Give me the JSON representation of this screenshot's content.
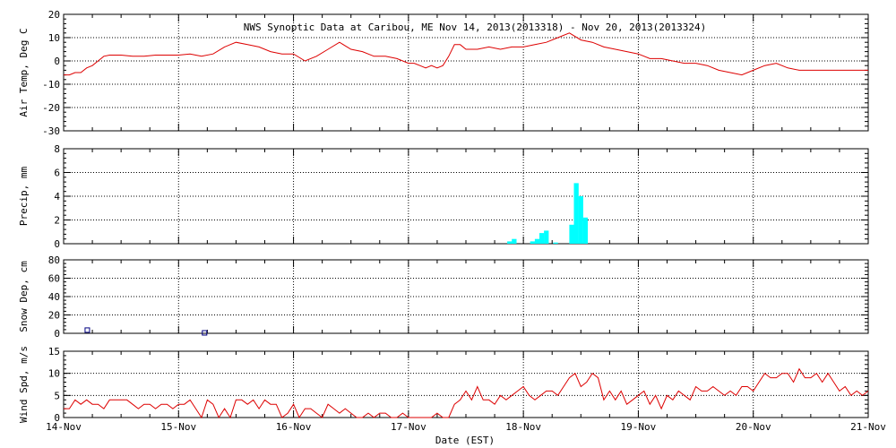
{
  "title": "NWS Synoptic Data at Caribou, ME   Nov 14, 2013(2013318) - Nov 20, 2013(2013324)",
  "colors": {
    "line": "#dd0000",
    "precip": "#00ffff",
    "snow": "#000080",
    "axis": "#000000"
  },
  "chart_data": [
    {
      "type": "line",
      "ylabel": "Air Temp, Deg C",
      "ylim": [
        -30,
        20
      ],
      "yticks": [
        "20",
        "10",
        "0",
        "-10",
        "-20",
        "-30"
      ],
      "grid": true,
      "x_units": "days since Nov 14 00:00",
      "series": [
        {
          "x": [
            0,
            0.05,
            0.1,
            0.15,
            0.2,
            0.25,
            0.3,
            0.35,
            0.4,
            0.45,
            0.5,
            0.6,
            0.7,
            0.8,
            0.9,
            1.0,
            1.1,
            1.2,
            1.3,
            1.4,
            1.5,
            1.6,
            1.7,
            1.8,
            1.9,
            2.0,
            2.1,
            2.2,
            2.3,
            2.4,
            2.5,
            2.6,
            2.7,
            2.8,
            2.9,
            3.0,
            3.05,
            3.1,
            3.15,
            3.2,
            3.25,
            3.3,
            3.35,
            3.4,
            3.45,
            3.5,
            3.6,
            3.7,
            3.8,
            3.9,
            4.0,
            4.1,
            4.2,
            4.3,
            4.4,
            4.5,
            4.6,
            4.7,
            4.8,
            4.9,
            5.0,
            5.1,
            5.2,
            5.3,
            5.4,
            5.5,
            5.6,
            5.7,
            5.8,
            5.9,
            6.0,
            6.1,
            6.2,
            6.3,
            6.4,
            6.5,
            6.6,
            6.7,
            6.8,
            6.9,
            7.0
          ],
          "y": [
            -6,
            -6,
            -5,
            -5,
            -3,
            -2,
            0,
            2,
            2.5,
            2.5,
            2.5,
            2,
            2,
            2.5,
            2.5,
            2.5,
            3,
            2,
            3,
            6,
            8,
            7,
            6,
            4,
            3,
            3,
            0,
            2,
            5,
            8,
            5,
            4,
            2,
            2,
            1,
            -1,
            -1,
            -2,
            -3,
            -2,
            -3,
            -2,
            2,
            7,
            7,
            5,
            5,
            6,
            5,
            6,
            6,
            7,
            8,
            10,
            12,
            9,
            8,
            6,
            5,
            4,
            3,
            1,
            1,
            0,
            -1,
            -1,
            -2,
            -4,
            -5,
            -6,
            -4,
            -2,
            -1,
            -3,
            -4,
            -4,
            -4,
            -4,
            -4,
            -4,
            -4
          ]
        }
      ]
    },
    {
      "type": "bar",
      "ylabel": "Precip, mm",
      "ylim": [
        0,
        8
      ],
      "yticks": [
        "8",
        "6",
        "4",
        "2",
        "0"
      ],
      "grid": true,
      "x_units": "days since Nov 14 00:00",
      "series": [
        {
          "x": [
            3.88,
            3.92,
            4.08,
            4.12,
            4.16,
            4.2,
            4.28,
            4.42,
            4.46,
            4.5,
            4.54
          ],
          "y": [
            0.2,
            0.4,
            0.2,
            0.4,
            0.9,
            1.1,
            0.1,
            1.6,
            5.1,
            4.0,
            2.2
          ]
        }
      ]
    },
    {
      "type": "scatter",
      "ylabel": "Snow Dep, cm",
      "ylim": [
        0,
        80
      ],
      "yticks": [
        "80",
        "60",
        "40",
        "20",
        "0"
      ],
      "grid": true,
      "x_units": "days since Nov 14 00:00",
      "series": [
        {
          "x": [
            0.21,
            1.23
          ],
          "y": [
            3,
            0
          ]
        }
      ]
    },
    {
      "type": "line",
      "ylabel": "Wind Spd, m/s",
      "ylim": [
        0,
        15
      ],
      "yticks": [
        "15",
        "10",
        "5",
        "0"
      ],
      "grid": true,
      "x_units": "days since Nov 14 00:00",
      "series": [
        {
          "x": [
            0,
            0.05,
            0.1,
            0.15,
            0.2,
            0.25,
            0.3,
            0.35,
            0.4,
            0.45,
            0.5,
            0.55,
            0.6,
            0.65,
            0.7,
            0.75,
            0.8,
            0.85,
            0.9,
            0.95,
            1.0,
            1.05,
            1.1,
            1.15,
            1.2,
            1.25,
            1.3,
            1.35,
            1.4,
            1.45,
            1.5,
            1.55,
            1.6,
            1.65,
            1.7,
            1.75,
            1.8,
            1.85,
            1.9,
            1.95,
            2.0,
            2.05,
            2.1,
            2.15,
            2.2,
            2.25,
            2.3,
            2.35,
            2.4,
            2.45,
            2.5,
            2.55,
            2.6,
            2.65,
            2.7,
            2.75,
            2.8,
            2.85,
            2.9,
            2.95,
            3.0,
            3.05,
            3.1,
            3.15,
            3.2,
            3.25,
            3.3,
            3.35,
            3.4,
            3.45,
            3.5,
            3.55,
            3.6,
            3.65,
            3.7,
            3.75,
            3.8,
            3.85,
            3.9,
            3.95,
            4.0,
            4.05,
            4.1,
            4.15,
            4.2,
            4.25,
            4.3,
            4.35,
            4.4,
            4.45,
            4.5,
            4.55,
            4.6,
            4.65,
            4.7,
            4.75,
            4.8,
            4.85,
            4.9,
            4.95,
            5.0,
            5.05,
            5.1,
            5.15,
            5.2,
            5.25,
            5.3,
            5.35,
            5.4,
            5.45,
            5.5,
            5.55,
            5.6,
            5.65,
            5.7,
            5.75,
            5.8,
            5.85,
            5.9,
            5.95,
            6.0,
            6.05,
            6.1,
            6.15,
            6.2,
            6.25,
            6.3,
            6.35,
            6.4,
            6.45,
            6.5,
            6.55,
            6.6,
            6.65,
            6.7,
            6.75,
            6.8,
            6.85,
            6.9,
            6.95,
            7.0
          ],
          "y": [
            2,
            2,
            4,
            3,
            4,
            3,
            3,
            2,
            4,
            4,
            4,
            4,
            3,
            2,
            3,
            3,
            2,
            3,
            3,
            2,
            3,
            3,
            4,
            2,
            0,
            4,
            3,
            0,
            2,
            0,
            4,
            4,
            3,
            4,
            2,
            4,
            3,
            3,
            0,
            1,
            3,
            0,
            2,
            2,
            1,
            0,
            3,
            2,
            1,
            2,
            1,
            0,
            0,
            1,
            0,
            1,
            1,
            0,
            0,
            1,
            0,
            0,
            0,
            0,
            0,
            1,
            0,
            0,
            3,
            4,
            6,
            4,
            7,
            4,
            4,
            3,
            5,
            4,
            5,
            6,
            7,
            5,
            4,
            5,
            6,
            6,
            5,
            7,
            9,
            10,
            7,
            8,
            10,
            9,
            4,
            6,
            4,
            6,
            3,
            4,
            5,
            6,
            3,
            5,
            2,
            5,
            4,
            6,
            5,
            4,
            7,
            6,
            6,
            7,
            6,
            5,
            6,
            5,
            7,
            7,
            6,
            8,
            10,
            9,
            9,
            10,
            10,
            8,
            11,
            9,
            9,
            10,
            8,
            10,
            8,
            6,
            7,
            5,
            6,
            5,
            6
          ],
          "wind_note": ""
        }
      ]
    }
  ],
  "xaxis": {
    "label": "Date (EST)",
    "ticks": [
      "14-Nov",
      "15-Nov",
      "16-Nov",
      "17-Nov",
      "18-Nov",
      "19-Nov",
      "20-Nov",
      "21-Nov"
    ],
    "xlim": [
      0,
      7
    ]
  }
}
